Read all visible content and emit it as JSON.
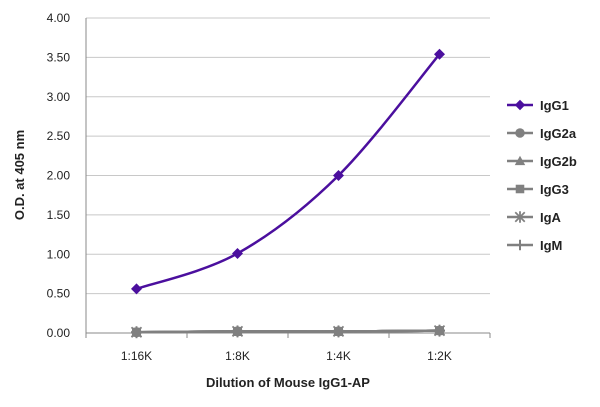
{
  "chart_data": {
    "type": "line",
    "categories": [
      "1:16K",
      "1:8K",
      "1:4K",
      "1:2K"
    ],
    "xlabel": "Dilution of Mouse IgG1-AP",
    "ylabel": "O.D. at 405 nm",
    "ylim": [
      0,
      4
    ],
    "yticks": [
      "0.00",
      "0.50",
      "1.00",
      "1.50",
      "2.00",
      "2.50",
      "3.00",
      "3.50",
      "4.00"
    ],
    "grid": "horizontal",
    "legend_position": "right",
    "series": [
      {
        "name": "IgG1",
        "values": [
          0.56,
          1.01,
          2.0,
          3.54
        ],
        "marker": "diamond",
        "color": "#4b0f9e"
      },
      {
        "name": "IgG2a",
        "values": [
          0.01,
          0.02,
          0.02,
          0.03
        ],
        "marker": "circle",
        "color": "#808080"
      },
      {
        "name": "IgG2b",
        "values": [
          0.01,
          0.02,
          0.02,
          0.03
        ],
        "marker": "triangle",
        "color": "#808080"
      },
      {
        "name": "IgG3",
        "values": [
          0.01,
          0.02,
          0.02,
          0.03
        ],
        "marker": "square",
        "color": "#808080"
      },
      {
        "name": "IgA",
        "values": [
          0.01,
          0.02,
          0.02,
          0.03
        ],
        "marker": "star",
        "color": "#808080"
      },
      {
        "name": "IgM",
        "values": [
          0.01,
          0.02,
          0.02,
          0.03
        ],
        "marker": "plus",
        "color": "#808080"
      }
    ]
  }
}
